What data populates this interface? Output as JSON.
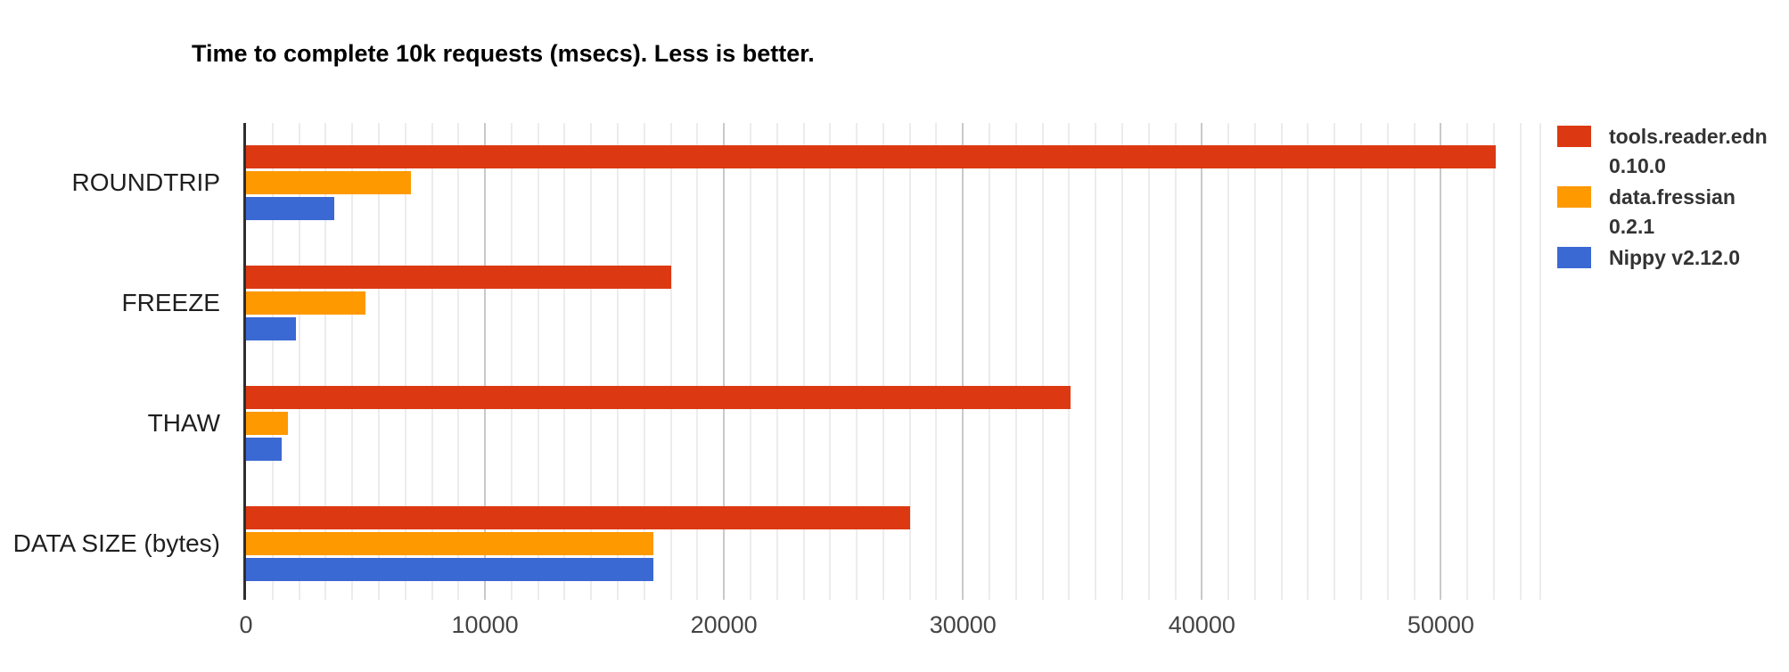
{
  "chart_data": {
    "type": "bar",
    "orientation": "horizontal",
    "title": "Time to complete 10k requests (msecs). Less is better.",
    "xlabel": "",
    "ylabel": "",
    "categories": [
      "ROUNDTRIP",
      "FREEZE",
      "THAW",
      "DATA SIZE (bytes)"
    ],
    "series": [
      {
        "name": "tools.reader.edn 0.10.0",
        "label_lines": [
          "tools.reader.edn",
          "0.10.0"
        ],
        "color": "#DC3912",
        "values": [
          52300,
          17800,
          34500,
          27800
        ]
      },
      {
        "name": "data.fressian 0.2.1",
        "label_lines": [
          "data.fressian",
          "0.2.1"
        ],
        "color": "#FF9900",
        "values": [
          6900,
          5000,
          1750,
          17050
        ]
      },
      {
        "name": "Nippy v2.12.0",
        "label_lines": [
          "Nippy v2.12.0"
        ],
        "color": "#3B69D4",
        "values": [
          3700,
          2100,
          1500,
          17050
        ]
      }
    ],
    "xlim": [
      0,
      54200
    ],
    "x_ticks": [
      0,
      10000,
      20000,
      30000,
      40000,
      50000
    ],
    "minor_gridlines_per_major": 9,
    "grid": true,
    "legend_position": "right",
    "colors": {
      "axis_line": "#2e2e2e",
      "grid_minor": "#ececec",
      "grid_major": "#c9c9c9",
      "tick_text": "#444444",
      "category_text": "#1f1f1f",
      "legend_text": "#333333",
      "title_text": "#000000",
      "background": "#ffffff"
    }
  }
}
